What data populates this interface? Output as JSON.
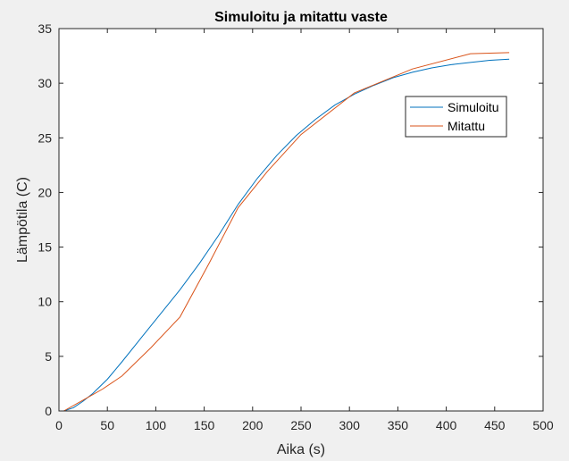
{
  "chart_data": {
    "type": "line",
    "title": "Simuloitu ja mitattu vaste",
    "xlabel": "Aika (s)",
    "ylabel": "Lämpötila (C)",
    "xlim": [
      0,
      500
    ],
    "ylim": [
      0,
      35
    ],
    "xticks": [
      0,
      50,
      100,
      150,
      200,
      250,
      300,
      350,
      400,
      450,
      500
    ],
    "yticks": [
      0,
      5,
      10,
      15,
      20,
      25,
      30,
      35
    ],
    "grid": false,
    "legend": {
      "position": "top-right",
      "entries": [
        "Simuloitu",
        "Mitattu"
      ]
    },
    "series": [
      {
        "name": "Simuloitu",
        "color": "#0072BD",
        "x": [
          5,
          15,
          25,
          35,
          50,
          65,
          85,
          105,
          125,
          145,
          165,
          185,
          205,
          225,
          245,
          265,
          285,
          305,
          325,
          345,
          365,
          385,
          405,
          425,
          445,
          465
        ],
        "y": [
          0,
          0.3,
          0.9,
          1.6,
          2.9,
          4.5,
          6.7,
          8.9,
          11.1,
          13.5,
          16.1,
          18.9,
          21.3,
          23.4,
          25.2,
          26.7,
          28.0,
          29.0,
          29.8,
          30.5,
          31.0,
          31.4,
          31.7,
          31.9,
          32.1,
          32.2
        ]
      },
      {
        "name": "Mitattu",
        "color": "#D95319",
        "x": [
          5,
          25,
          45,
          65,
          95,
          125,
          155,
          185,
          215,
          250,
          305,
          365,
          425,
          465
        ],
        "y": [
          0,
          1.0,
          2.0,
          3.2,
          5.8,
          8.6,
          13.5,
          18.6,
          21.9,
          25.3,
          29.1,
          31.3,
          32.7,
          32.8
        ]
      }
    ]
  }
}
